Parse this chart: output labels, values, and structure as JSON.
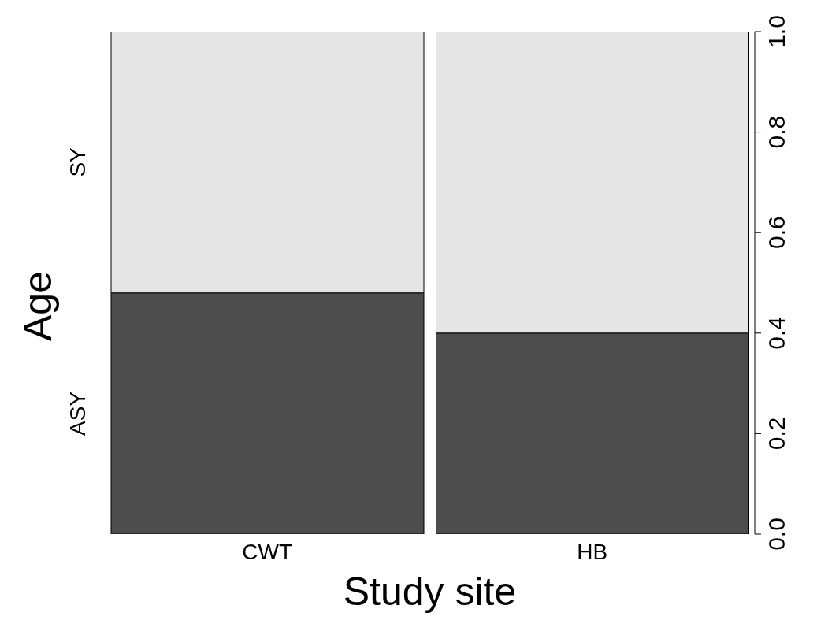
{
  "chart_data": {
    "type": "bar",
    "stacked": true,
    "xlabel": "Study site",
    "ylabel": "Age",
    "categories": [
      "CWT",
      "HB"
    ],
    "series": [
      {
        "name": "ASY",
        "color": "#4d4d4d",
        "values": [
          0.48,
          0.4
        ]
      },
      {
        "name": "SY",
        "color": "#e5e5e5",
        "values": [
          0.52,
          0.6
        ]
      }
    ],
    "ylim": [
      0,
      1
    ],
    "yticks": [
      {
        "value": 0,
        "label": "0.0"
      },
      {
        "value": 0.2,
        "label": "0.2"
      },
      {
        "value": 0.4,
        "label": "0.4"
      },
      {
        "value": 0.6,
        "label": "0.6"
      },
      {
        "value": 0.8,
        "label": "0.8"
      },
      {
        "value": 1,
        "label": "1.0"
      }
    ]
  }
}
